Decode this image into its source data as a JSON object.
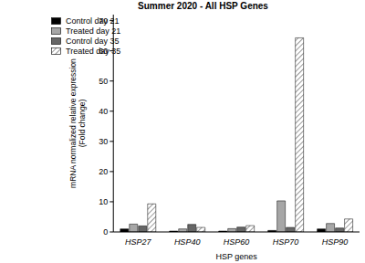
{
  "chart_data": {
    "type": "bar",
    "title": "Summer 2020 - All HSP Genes",
    "xlabel": "HSP genes",
    "ylabel": "mRNA normalized relative expression\n(Fold change)",
    "categories": [
      "HSP27",
      "HSP40",
      "HSP60",
      "HSP70",
      "HSP90"
    ],
    "series": [
      {
        "name": "Control day 21",
        "color": "#000000",
        "values": [
          1.0,
          0.3,
          0.3,
          0.5,
          1.0
        ]
      },
      {
        "name": "Treated day 21",
        "color": "#a6a6a6",
        "values": [
          2.6,
          1.0,
          1.1,
          10.3,
          2.8
        ]
      },
      {
        "name": "Control day 35",
        "color": "#666666",
        "values": [
          2.0,
          2.5,
          1.6,
          1.5,
          1.3
        ]
      },
      {
        "name": "Treated day 35",
        "color": "#ffffff",
        "values": [
          9.3,
          1.5,
          2.1,
          64.3,
          4.3
        ]
      }
    ],
    "ylim": [
      0,
      72
    ],
    "yticks": [
      0,
      10,
      20,
      30,
      40,
      50,
      60,
      70
    ],
    "grid": false,
    "legend": "upper left"
  }
}
